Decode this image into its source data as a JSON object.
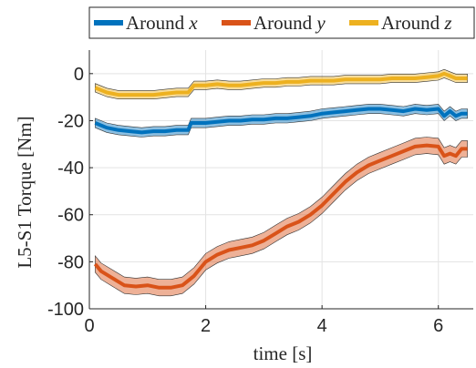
{
  "chart_data": {
    "type": "line",
    "xlabel": "time [s]",
    "ylabel": "L5-S1 Torque [Nm]",
    "xlim": [
      0,
      6.6
    ],
    "ylim": [
      -100,
      10
    ],
    "xticks": [
      0,
      2,
      4,
      6
    ],
    "yticks": [
      0,
      -20,
      -40,
      -60,
      -80,
      -100
    ],
    "grid": true,
    "legend_position": "top",
    "series": [
      {
        "name": "Around",
        "name_math": "x",
        "color": "#0072BD",
        "band_halfwidth": 2.0,
        "x": [
          0.1,
          0.3,
          0.5,
          0.7,
          0.9,
          1.1,
          1.3,
          1.5,
          1.7,
          1.75,
          2.0,
          2.2,
          2.4,
          2.6,
          2.8,
          3.0,
          3.2,
          3.4,
          3.6,
          3.8,
          4.0,
          4.2,
          4.4,
          4.6,
          4.8,
          5.0,
          5.2,
          5.4,
          5.6,
          5.8,
          6.0,
          6.1,
          6.2,
          6.3,
          6.4,
          6.5
        ],
        "y": [
          -21,
          -23,
          -24,
          -24.5,
          -25,
          -24.5,
          -24.5,
          -24,
          -24,
          -21,
          -21,
          -20.5,
          -20,
          -20,
          -19.5,
          -19.5,
          -19,
          -19,
          -18.5,
          -18,
          -17,
          -16.5,
          -16,
          -15.5,
          -15,
          -15,
          -15.5,
          -16,
          -15,
          -15.5,
          -15,
          -18,
          -16,
          -18,
          -17,
          -17
        ]
      },
      {
        "name": "Around",
        "name_math": "y",
        "color": "#D95319",
        "band_halfwidth": 3.5,
        "x": [
          0.1,
          0.2,
          0.4,
          0.6,
          0.8,
          1.0,
          1.2,
          1.4,
          1.6,
          1.8,
          2.0,
          2.2,
          2.4,
          2.6,
          2.8,
          3.0,
          3.2,
          3.4,
          3.6,
          3.8,
          4.0,
          4.2,
          4.4,
          4.6,
          4.8,
          5.0,
          5.2,
          5.4,
          5.6,
          5.8,
          6.0,
          6.1,
          6.2,
          6.3,
          6.4,
          6.5
        ],
        "y": [
          -81,
          -84,
          -87,
          -90,
          -90.5,
          -90,
          -91,
          -91,
          -90,
          -86,
          -80,
          -77,
          -75,
          -74,
          -73,
          -71,
          -68,
          -65,
          -63,
          -60,
          -56,
          -51,
          -46,
          -42,
          -39,
          -37,
          -35,
          -33,
          -31,
          -30.5,
          -31,
          -35,
          -34,
          -35,
          -32,
          -32
        ]
      },
      {
        "name": "Around",
        "name_math": "z",
        "color": "#EDB120",
        "band_halfwidth": 1.8,
        "x": [
          0.1,
          0.3,
          0.5,
          0.7,
          0.9,
          1.1,
          1.3,
          1.5,
          1.7,
          1.8,
          2.0,
          2.2,
          2.4,
          2.6,
          2.8,
          3.0,
          3.2,
          3.4,
          3.6,
          3.8,
          4.0,
          4.2,
          4.4,
          4.6,
          4.8,
          5.0,
          5.2,
          5.4,
          5.6,
          5.8,
          6.0,
          6.1,
          6.2,
          6.3,
          6.4,
          6.5
        ],
        "y": [
          -6,
          -8,
          -9,
          -9,
          -9,
          -9,
          -8.5,
          -8,
          -8,
          -5,
          -5,
          -4.5,
          -5,
          -5,
          -4.5,
          -4,
          -4,
          -3.5,
          -3.5,
          -3,
          -3,
          -3,
          -2.5,
          -2.5,
          -2.5,
          -2.5,
          -2,
          -2,
          -2,
          -1.5,
          -1,
          0,
          -1,
          -2,
          -2,
          -2
        ]
      }
    ]
  }
}
